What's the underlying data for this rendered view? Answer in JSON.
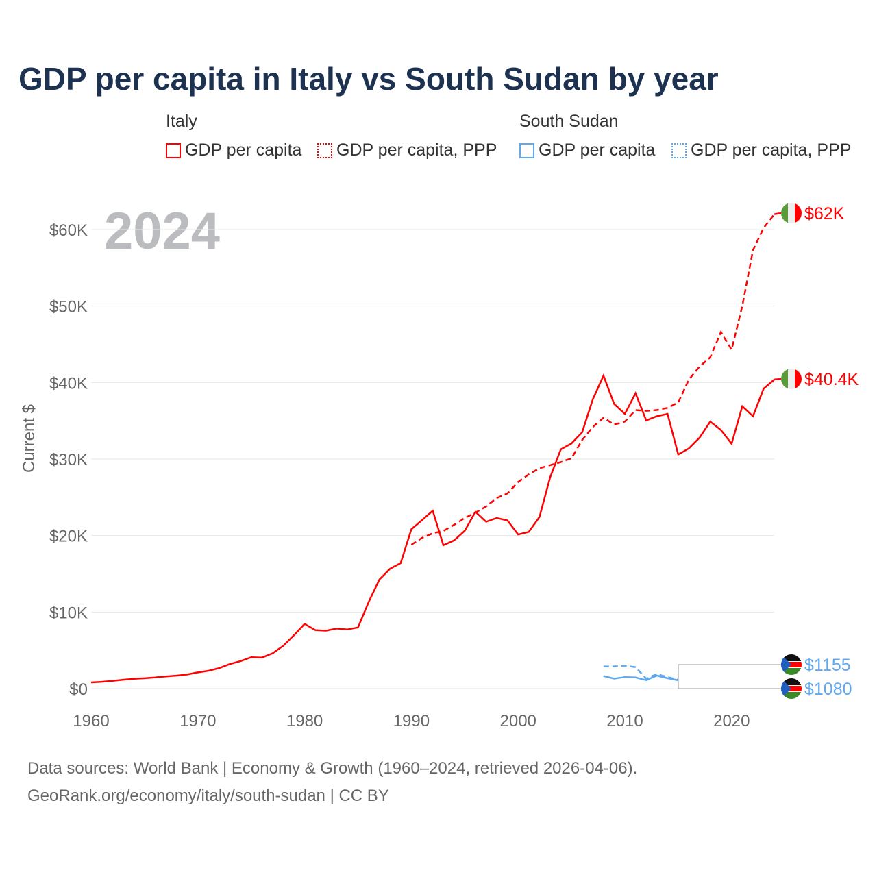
{
  "title": "GDP per capita in Italy vs South Sudan by year",
  "legend": {
    "italy": "Italy",
    "south_sudan": "South Sudan",
    "gdp": "GDP per capita",
    "ppp": "GDP per capita, PPP"
  },
  "year_overlay": "2024",
  "footer": {
    "line1": "Data sources: World Bank | Economy & Growth (1960–2024, retrieved 2026-04-06).",
    "line2": "GeoRank.org/economy/italy/south-sudan | CC BY"
  },
  "colors": {
    "italy": "#ff0000",
    "south_sudan": "#5fa8ee"
  },
  "chart_data": {
    "type": "line",
    "title": "GDP per capita in Italy vs South Sudan by year",
    "xlabel": "",
    "ylabel": "Current $",
    "xlim": [
      1960,
      2024
    ],
    "ylim": [
      0,
      62000
    ],
    "x_ticks": [
      1960,
      1970,
      1980,
      1990,
      2000,
      2010,
      2020
    ],
    "y_ticks": [
      {
        "v": 0,
        "l": "$0"
      },
      {
        "v": 10000,
        "l": "$10K"
      },
      {
        "v": 20000,
        "l": "$20K"
      },
      {
        "v": 30000,
        "l": "$30K"
      },
      {
        "v": 40000,
        "l": "$40K"
      },
      {
        "v": 50000,
        "l": "$50K"
      },
      {
        "v": 60000,
        "l": "$60K"
      }
    ],
    "series": [
      {
        "name": "Italy GDP per capita",
        "country": "italy",
        "dash": false,
        "start": 1960,
        "end_label": "$40.4K",
        "values": [
          804,
          890,
          1008,
          1154,
          1268,
          1353,
          1453,
          1581,
          1693,
          1845,
          2111,
          2328,
          2677,
          3203,
          3594,
          4100,
          4055,
          4612,
          5586,
          6980,
          8457,
          7640,
          7570,
          7844,
          7730,
          7991,
          11315,
          14243,
          15652,
          16394,
          20826,
          22024,
          23250,
          18737,
          19363,
          20625,
          23100,
          21807,
          22300,
          21983,
          20138,
          20477,
          22445,
          27600,
          31260,
          32042,
          33501,
          37822,
          40900,
          37200,
          35900,
          38600,
          35050,
          35600,
          35900,
          30600,
          31400,
          32800,
          34900,
          33800,
          32000,
          36900,
          35600,
          39200,
          40400
        ]
      },
      {
        "name": "Italy GDP per capita, PPP",
        "country": "italy",
        "dash": true,
        "start": 1990,
        "end_label": "$62K",
        "values": [
          18800,
          19700,
          20300,
          20600,
          21400,
          22300,
          23000,
          23800,
          24900,
          25500,
          27000,
          28000,
          28800,
          29200,
          29600,
          30100,
          32500,
          34200,
          35400,
          34500,
          34900,
          36400,
          36300,
          36400,
          36700,
          37400,
          40400,
          42100,
          43300,
          46600,
          44300,
          50000,
          57300,
          60200,
          62000
        ]
      },
      {
        "name": "South Sudan GDP per capita, PPP",
        "country": "south_sudan",
        "dash": true,
        "start": 2008,
        "end_label": "$1155",
        "values": [
          2900,
          2900,
          3000,
          2800,
          1300,
          1900,
          1500,
          1155
        ]
      },
      {
        "name": "South Sudan GDP per capita",
        "country": "south_sudan",
        "dash": false,
        "start": 2008,
        "end_label": "$1080",
        "values": [
          1650,
          1300,
          1500,
          1450,
          1100,
          1700,
          1350,
          1080
        ]
      }
    ]
  }
}
